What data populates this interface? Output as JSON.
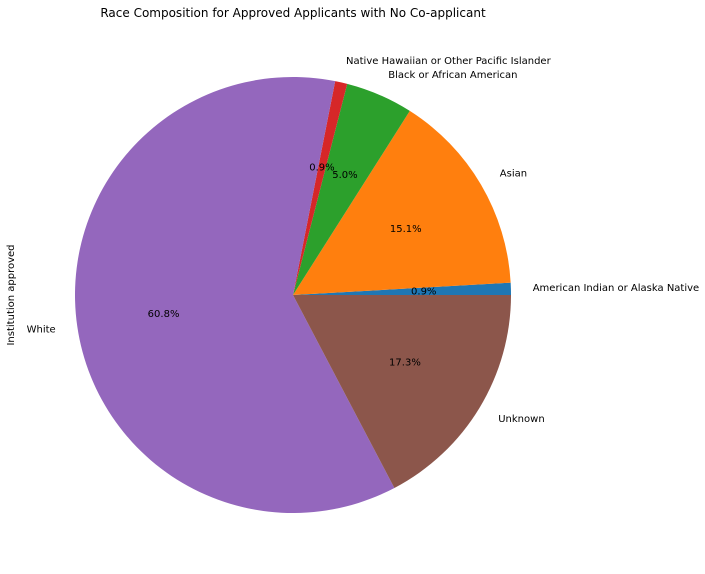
{
  "chart_data": {
    "type": "pie",
    "title": "Race Composition for Approved Applicants with No Co-applicant",
    "ylabel": "Institution approved",
    "categories": [
      "American Indian or Alaska Native",
      "Asian",
      "Black or African American",
      "Native Hawaiian or Other Pacific Islander",
      "White",
      "Unknown"
    ],
    "values": [
      0.9,
      15.1,
      5.0,
      0.9,
      60.8,
      17.3
    ],
    "value_labels": [
      "0.9%",
      "15.1%",
      "5.0%",
      "0.9%",
      "60.8%",
      "17.3%"
    ],
    "colors": [
      "#1f77b4",
      "#ff7f0e",
      "#2ca02c",
      "#d62728",
      "#9467bd",
      "#8c564b"
    ],
    "legend": "none"
  }
}
